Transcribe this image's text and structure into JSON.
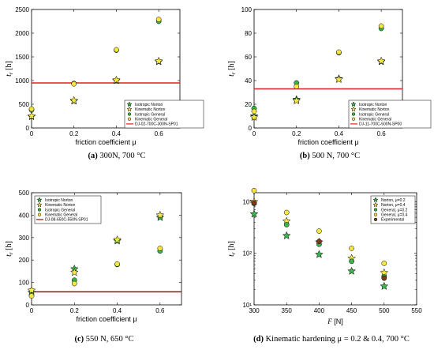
{
  "chart_data": [
    {
      "type": "scatter",
      "caption": "300N, 700 °C",
      "panel": "(a)",
      "xlabel": "friction coefficient μ",
      "ylabel": "tr [h]",
      "xlim": [
        0,
        0.7
      ],
      "ylim": [
        0,
        2500
      ],
      "xticks": [
        0,
        0.2,
        0.4,
        0.6
      ],
      "yticks": [
        0,
        500,
        1000,
        1500,
        2000,
        2500
      ],
      "yscale": "linear",
      "legend_position": "bottom-right",
      "series": [
        {
          "name": "Isotropic Norton",
          "marker": "star",
          "color": "#3cb44b",
          "x": [
            0,
            0.2,
            0.4,
            0.6
          ],
          "y": [
            240,
            570,
            1000,
            1400
          ]
        },
        {
          "name": "Kinematic Norton",
          "marker": "star",
          "color": "#f5e642",
          "x": [
            0,
            0.2,
            0.4,
            0.6
          ],
          "y": [
            250,
            580,
            1010,
            1410
          ]
        },
        {
          "name": "Isotropic General",
          "marker": "circle",
          "color": "#3cb44b",
          "x": [
            0,
            0.2,
            0.4,
            0.6
          ],
          "y": [
            380,
            940,
            1640,
            2250
          ]
        },
        {
          "name": "Kinematic General",
          "marker": "circle",
          "color": "#f5e642",
          "x": [
            0,
            0.2,
            0.4,
            0.6
          ],
          "y": [
            400,
            930,
            1650,
            2290
          ]
        }
      ],
      "hline": {
        "name": "DJ-02-700C-300N-SP01",
        "y": 950,
        "color": "#e02020"
      }
    },
    {
      "type": "scatter",
      "caption": "500 N, 700 °C",
      "panel": "(b)",
      "xlabel": "friction coefficient μ",
      "ylabel": "tr [h]",
      "xlim": [
        0,
        0.7
      ],
      "ylim": [
        0,
        100
      ],
      "xticks": [
        0,
        0.2,
        0.4,
        0.6
      ],
      "yticks": [
        0,
        20,
        40,
        60,
        80,
        100
      ],
      "yscale": "linear",
      "legend_position": "bottom-right",
      "series": [
        {
          "name": "Isotropic Norton",
          "marker": "star",
          "color": "#3cb44b",
          "x": [
            0,
            0.2,
            0.4,
            0.6
          ],
          "y": [
            10,
            24,
            41.5,
            56
          ]
        },
        {
          "name": "Kinematic Norton",
          "marker": "star",
          "color": "#f5e642",
          "x": [
            0,
            0.2,
            0.4,
            0.6
          ],
          "y": [
            9,
            23,
            41,
            56.5
          ]
        },
        {
          "name": "Isotropic General",
          "marker": "circle",
          "color": "#3cb44b",
          "x": [
            0,
            0.2,
            0.4,
            0.6
          ],
          "y": [
            16.5,
            38,
            63.5,
            84
          ]
        },
        {
          "name": "Kinematic General",
          "marker": "circle",
          "color": "#f5e642",
          "x": [
            0,
            0.2,
            0.4,
            0.6
          ],
          "y": [
            14,
            35,
            64,
            86
          ]
        }
      ],
      "hline": {
        "name": "DJ-11-700C-500N-SP00",
        "y": 33,
        "color": "#e02020"
      }
    },
    {
      "type": "scatter",
      "caption": "550 N, 650 °C",
      "panel": "(c)",
      "xlabel": "friction coefficient μ",
      "ylabel": "tr [h]",
      "xlim": [
        0,
        0.7
      ],
      "ylim": [
        0,
        500
      ],
      "xticks": [
        0,
        0.2,
        0.4,
        0.6
      ],
      "yticks": [
        0,
        100,
        200,
        300,
        400,
        500
      ],
      "yscale": "linear",
      "legend_position": "top-left",
      "series": [
        {
          "name": "Isotropic Norton",
          "marker": "star",
          "color": "#3cb44b",
          "x": [
            0,
            0.2,
            0.4,
            0.6
          ],
          "y": [
            55,
            160,
            285,
            390
          ]
        },
        {
          "name": "Kinematic Norton",
          "marker": "star",
          "color": "#f5e642",
          "x": [
            0,
            0.2,
            0.4,
            0.6
          ],
          "y": [
            65,
            145,
            290,
            400
          ]
        },
        {
          "name": "Isotropic General",
          "marker": "circle",
          "color": "#3cb44b",
          "x": [
            0,
            0.2,
            0.4,
            0.6
          ],
          "y": [
            45,
            110,
            180,
            240
          ]
        },
        {
          "name": "Kinematic General",
          "marker": "circle",
          "color": "#f5e642",
          "x": [
            0,
            0.2,
            0.4,
            0.6
          ],
          "y": [
            40,
            95,
            182,
            252
          ]
        }
      ],
      "hline": {
        "name": "DJ-08-650C-550N-SP01",
        "y": 58,
        "color": "#8b1a1a"
      }
    },
    {
      "type": "scatter",
      "caption": "Kinematic hardening μ = 0.2 & 0.4, 700 °C",
      "panel": "(d)",
      "xlabel": "F [N]",
      "ylabel": "tr [h]",
      "xlim": [
        300,
        550
      ],
      "ylim": [
        10,
        1500
      ],
      "xticks": [
        300,
        350,
        400,
        450,
        500,
        550
      ],
      "yticks": [
        10,
        100,
        1000
      ],
      "ytick_labels": [
        "10¹",
        "10²",
        "10³"
      ],
      "yscale": "log",
      "legend_position": "top-right",
      "series": [
        {
          "name": "Norton, μ=0.2",
          "marker": "star",
          "color": "#3cb44b",
          "x": [
            300,
            350,
            400,
            450,
            500
          ],
          "y": [
            580,
            220,
            95,
            45,
            23
          ]
        },
        {
          "name": "Norton, μ=0.4",
          "marker": "star",
          "color": "#f5e642",
          "x": [
            300,
            350,
            400,
            450,
            500
          ],
          "y": [
            1000,
            420,
            165,
            80,
            42
          ]
        },
        {
          "name": "General, μ=0.2",
          "marker": "circle",
          "color": "#3cb44b",
          "x": [
            300,
            350,
            400,
            450,
            500
          ],
          "y": [
            930,
            360,
            150,
            70,
            35
          ]
        },
        {
          "name": "General, μ=0.4",
          "marker": "circle",
          "color": "#f5e642",
          "x": [
            300,
            350,
            400,
            450,
            500
          ],
          "y": [
            1650,
            620,
            270,
            125,
            64
          ]
        },
        {
          "name": "Experimental",
          "marker": "circle",
          "color": "#7a3b1a",
          "x": [
            300,
            400,
            500
          ],
          "y": [
            950,
            170,
            33
          ]
        }
      ]
    }
  ]
}
